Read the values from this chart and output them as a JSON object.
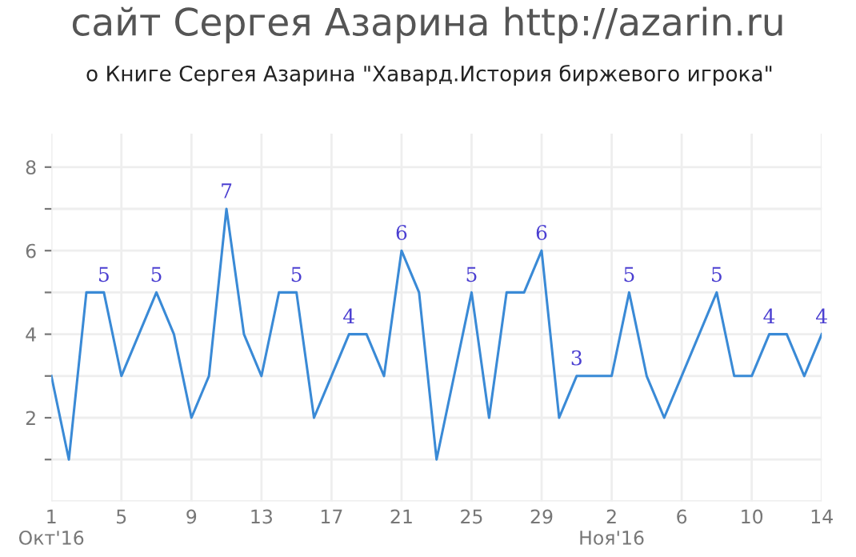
{
  "chart_data": {
    "type": "line",
    "title": "сайт Сергея Азарина http://azarin.ru",
    "subtitle": "о Книге Сергея Азарина \"Хавард.История биржевого игрока\"",
    "x": [
      "2016-10-01",
      "2016-10-02",
      "2016-10-03",
      "2016-10-04",
      "2016-10-05",
      "2016-10-06",
      "2016-10-07",
      "2016-10-08",
      "2016-10-09",
      "2016-10-10",
      "2016-10-11",
      "2016-10-12",
      "2016-10-13",
      "2016-10-14",
      "2016-10-15",
      "2016-10-16",
      "2016-10-17",
      "2016-10-18",
      "2016-10-19",
      "2016-10-20",
      "2016-10-21",
      "2016-10-22",
      "2016-10-23",
      "2016-10-24",
      "2016-10-25",
      "2016-10-26",
      "2016-10-27",
      "2016-10-28",
      "2016-10-29",
      "2016-10-30",
      "2016-10-31",
      "2016-11-01",
      "2016-11-02",
      "2016-11-03",
      "2016-11-04",
      "2016-11-05",
      "2016-11-06",
      "2016-11-07",
      "2016-11-08",
      "2016-11-09",
      "2016-11-10",
      "2016-11-11",
      "2016-11-12",
      "2016-11-13",
      "2016-11-14"
    ],
    "series": [
      {
        "color": "#3a8ad6",
        "values": [
          3,
          1,
          5,
          5,
          3,
          4,
          5,
          4,
          2,
          3,
          7,
          4,
          3,
          5,
          5,
          2,
          3,
          4,
          4,
          3,
          6,
          5,
          1,
          3,
          5,
          2,
          5,
          5,
          6,
          2,
          3,
          3,
          3,
          5,
          3,
          2,
          3,
          4,
          5,
          3,
          3,
          4,
          4,
          3,
          4
        ],
        "value_labels": [
          null,
          null,
          null,
          "5",
          null,
          null,
          "5",
          null,
          null,
          null,
          "7",
          null,
          null,
          null,
          "5",
          null,
          null,
          "4",
          null,
          null,
          "6",
          null,
          null,
          null,
          "5",
          null,
          null,
          null,
          "6",
          null,
          "3",
          null,
          null,
          "5",
          null,
          null,
          null,
          null,
          "5",
          null,
          null,
          "4",
          null,
          null,
          "4"
        ]
      }
    ],
    "xlim": [
      "2016-10-01",
      "2016-11-14"
    ],
    "xticks": [
      {
        "value": "2016-10-01",
        "label": "1\nОкт'16"
      },
      {
        "value": "2016-10-05",
        "label": "5"
      },
      {
        "value": "2016-10-09",
        "label": "9"
      },
      {
        "value": "2016-10-13",
        "label": "13"
      },
      {
        "value": "2016-10-17",
        "label": "17"
      },
      {
        "value": "2016-10-21",
        "label": "21"
      },
      {
        "value": "2016-10-25",
        "label": "25"
      },
      {
        "value": "2016-10-29",
        "label": "29"
      },
      {
        "value": "2016-11-02",
        "label": "2\nНоя'16"
      },
      {
        "value": "2016-11-06",
        "label": "6"
      },
      {
        "value": "2016-11-10",
        "label": "10"
      },
      {
        "value": "2016-11-14",
        "label": "14"
      }
    ],
    "ylim": [
      0,
      8.8
    ],
    "yticks": [
      {
        "value": 1,
        "label": null
      },
      2,
      {
        "value": 3,
        "label": null
      },
      4,
      {
        "value": 5,
        "label": null
      },
      6,
      {
        "value": 7,
        "label": null
      },
      8
    ],
    "grid": true,
    "marker": "none",
    "line_style": "solid"
  }
}
